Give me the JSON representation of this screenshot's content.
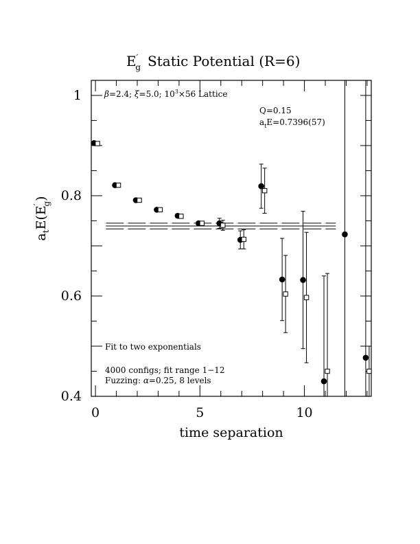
{
  "chart_data": {
    "type": "scatter",
    "title": {
      "main": "E",
      "sup": "′",
      "sub": "g",
      "rest": "Static Potential (R=6)"
    },
    "xlabel": "time separation",
    "ylabel": {
      "pre": "a",
      "pre_sub": "t",
      "mid": "E(E",
      "sup": "′",
      "sub": "g",
      "post": ")"
    },
    "xlim": [
      -0.2,
      13.2
    ],
    "ylim": [
      0.4,
      1.03
    ],
    "xticks_major": [
      0,
      5,
      10
    ],
    "xtick_labels": [
      "0",
      "5",
      "10"
    ],
    "yticks_major": [
      0.4,
      0.6,
      0.8,
      1.0
    ],
    "ytick_labels": [
      "0.4",
      "0.6",
      "0.8",
      "1"
    ],
    "annotations": {
      "lattice": {
        "beta": "β",
        "t1": "=2.4; ",
        "xi": "ξ",
        "t2": "=5.0; 10",
        "sup3": "3",
        "t3": "×56 Lattice"
      },
      "q": "Q=0.15",
      "fit_result": {
        "pre": "a",
        "sub": "t",
        "post": "E=0.7396(57)"
      },
      "method": "Fit to two exponentials",
      "configs": "4000 configs; fit range 1−12",
      "fuzzing": {
        "pre": "Fuzzing: ",
        "alpha": "α",
        "post": "=0.25, 8 levels"
      }
    },
    "fit": {
      "value": 0.7396,
      "error": 0.0057,
      "x_range": [
        0.5,
        11.5
      ]
    },
    "series": [
      {
        "marker": "filled-circle",
        "points": [
          {
            "x": 0,
            "y": 0.905,
            "err": 0.002
          },
          {
            "x": 1,
            "y": 0.821,
            "err": 0.002
          },
          {
            "x": 2,
            "y": 0.791,
            "err": 0.002
          },
          {
            "x": 3,
            "y": 0.772,
            "err": 0.002
          },
          {
            "x": 4,
            "y": 0.76,
            "err": 0.003
          },
          {
            "x": 5,
            "y": 0.745,
            "err": 0.003
          },
          {
            "x": 6,
            "y": 0.745,
            "err": 0.01
          },
          {
            "x": 7,
            "y": 0.712,
            "err": 0.018
          },
          {
            "x": 8,
            "y": 0.819,
            "err": 0.044
          },
          {
            "x": 9,
            "y": 0.633,
            "err": 0.082
          },
          {
            "x": 10,
            "y": 0.632,
            "err": 0.137
          },
          {
            "x": 11,
            "y": 0.43,
            "err": 0.21
          },
          {
            "x": 12,
            "y": 0.723,
            "err": 0.6
          },
          {
            "x": 13,
            "y": 0.477,
            "err": 0.6
          }
        ]
      },
      {
        "marker": "open-square",
        "points": [
          {
            "x": 0,
            "y": 0.904,
            "err": 0.002
          },
          {
            "x": 1,
            "y": 0.821,
            "err": 0.002
          },
          {
            "x": 2,
            "y": 0.791,
            "err": 0.002
          },
          {
            "x": 3,
            "y": 0.772,
            "err": 0.002
          },
          {
            "x": 4,
            "y": 0.759,
            "err": 0.003
          },
          {
            "x": 5,
            "y": 0.745,
            "err": 0.003
          },
          {
            "x": 6,
            "y": 0.741,
            "err": 0.01
          },
          {
            "x": 7,
            "y": 0.713,
            "err": 0.019
          },
          {
            "x": 8,
            "y": 0.81,
            "err": 0.045
          },
          {
            "x": 9,
            "y": 0.604,
            "err": 0.077
          },
          {
            "x": 10,
            "y": 0.597,
            "err": 0.13
          },
          {
            "x": 11,
            "y": 0.45,
            "err": 0.195
          },
          {
            "x": 13,
            "y": 0.45,
            "err": 0.05
          }
        ]
      }
    ]
  }
}
